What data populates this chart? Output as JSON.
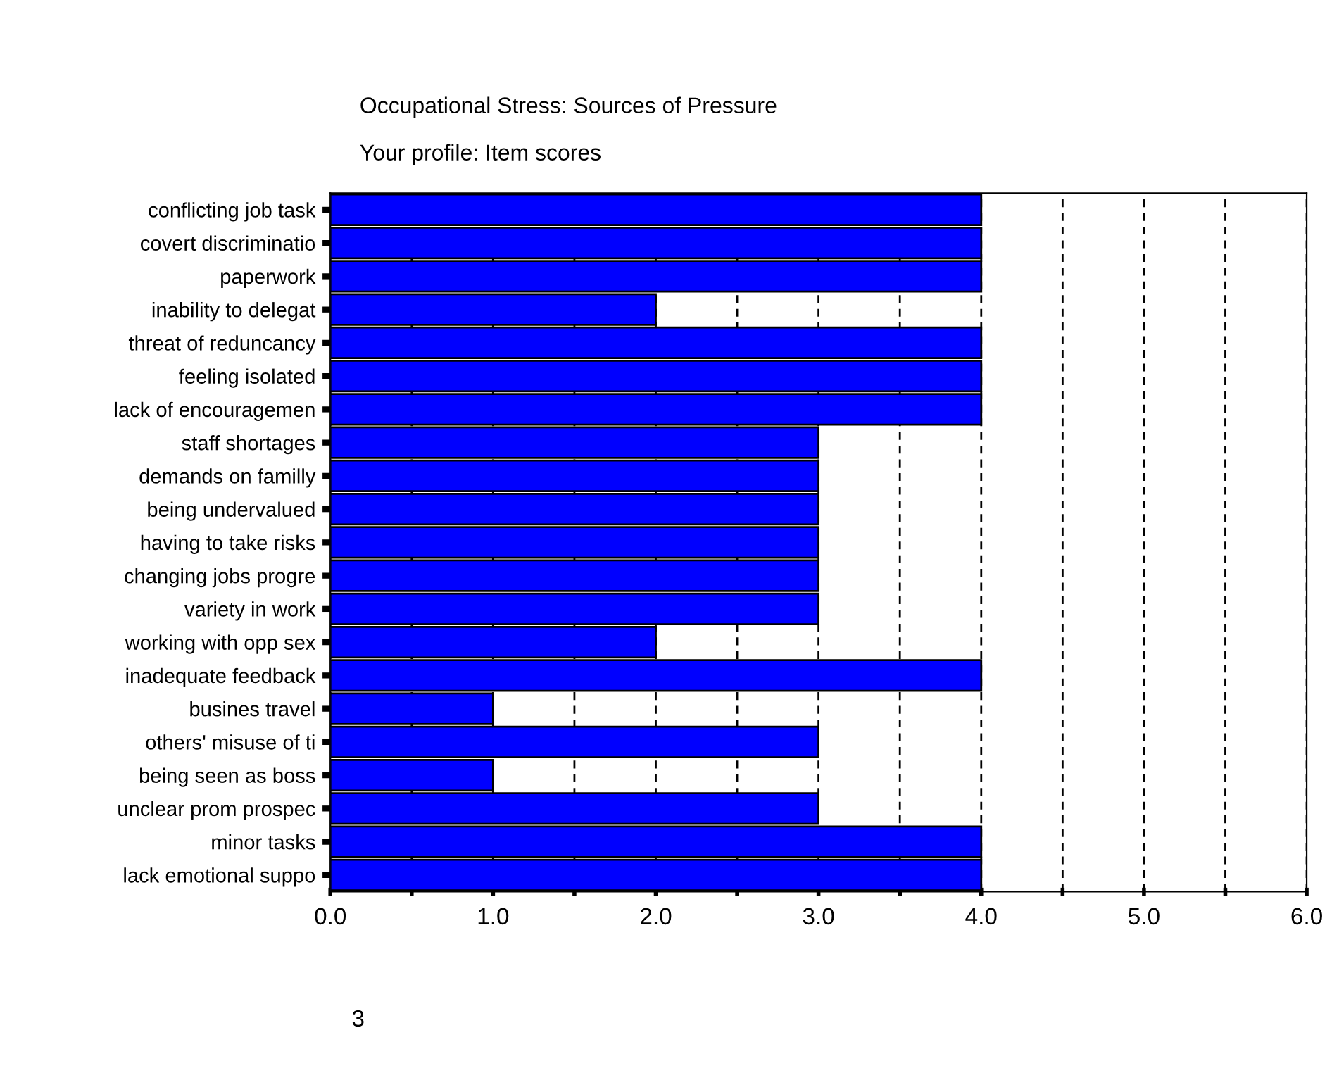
{
  "chart_data": {
    "type": "bar",
    "orientation": "horizontal",
    "title": "Occupational Stress: Sources of Pressure",
    "subtitle": "Your profile: Item scores",
    "categories": [
      "conflicting job task",
      "covert discriminatio",
      "paperwork",
      "inability to delegat",
      "threat of reduncancy",
      "feeling isolated",
      "lack of encouragemen",
      "staff shortages",
      "demands on familly",
      "being undervalued",
      "having to take risks",
      "changing jobs progre",
      "variety in work",
      "working with opp sex",
      "inadequate feedback",
      "busines travel",
      "others' misuse of ti",
      "being seen as boss",
      "unclear prom prospec",
      "minor tasks",
      "lack emotional suppo"
    ],
    "values": [
      4,
      4,
      4,
      2,
      4,
      4,
      4,
      3,
      3,
      3,
      3,
      3,
      3,
      2,
      4,
      1,
      3,
      1,
      3,
      4,
      4
    ],
    "color": "#0000ff",
    "xlim": [
      0,
      6
    ],
    "xticks": [
      {
        "value": 0,
        "label": "0.0"
      },
      {
        "value": 0.5,
        "label": null
      },
      {
        "value": 1,
        "label": "1.0"
      },
      {
        "value": 1.5,
        "label": null
      },
      {
        "value": 2,
        "label": "2.0"
      },
      {
        "value": 2.5,
        "label": null
      },
      {
        "value": 3,
        "label": "3.0"
      },
      {
        "value": 3.5,
        "label": null
      },
      {
        "value": 4,
        "label": "4.0"
      },
      {
        "value": 4.5,
        "label": null
      },
      {
        "value": 5,
        "label": "5.0"
      },
      {
        "value": 5.5,
        "label": null
      },
      {
        "value": 6,
        "label": "6.0"
      }
    ],
    "grid": "x",
    "annotations": [
      "3"
    ]
  }
}
